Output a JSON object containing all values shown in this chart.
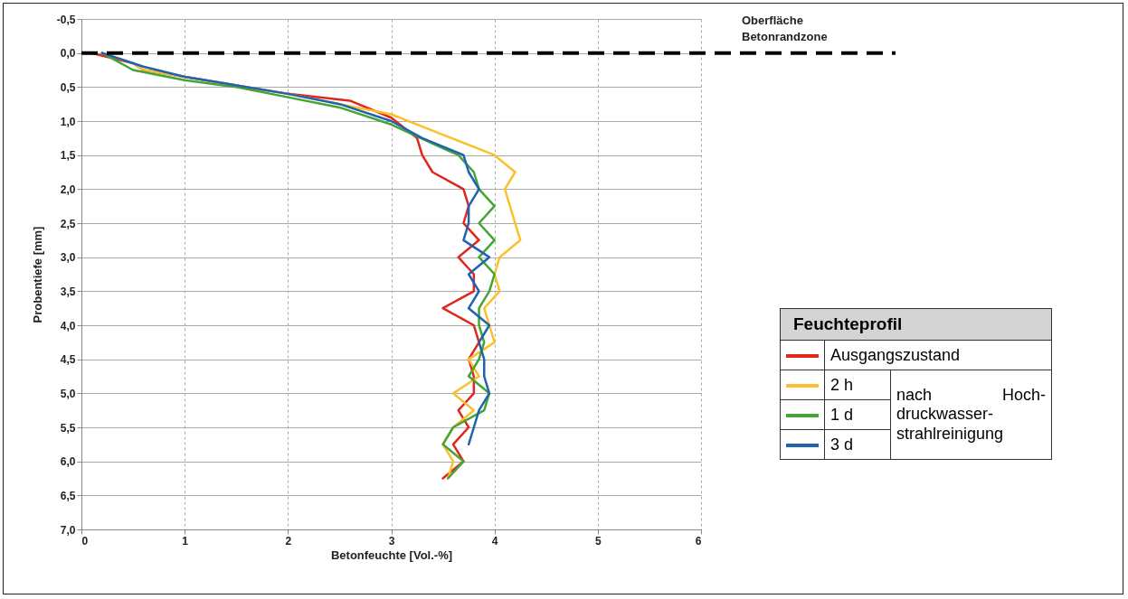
{
  "chart_data": {
    "type": "line",
    "xlabel": "Betonfeuchte [Vol.-%]",
    "ylabel": "Probentiefe  [mm]",
    "legend_title": "Feuchteprofil",
    "legend": "right",
    "grid": true,
    "xlim": [
      0,
      6
    ],
    "xticks": [
      0,
      1,
      2,
      3,
      4,
      5,
      6
    ],
    "ylim": [
      7,
      -0.5
    ],
    "yticks": [
      {
        "value": -0.5,
        "label": "-0,5"
      },
      {
        "value": 0,
        "label": "0,0"
      },
      {
        "value": 0.5,
        "label": "0,5"
      },
      {
        "value": 1,
        "label": "1,0"
      },
      {
        "value": 1.5,
        "label": "1,5"
      },
      {
        "value": 2,
        "label": "2,0"
      },
      {
        "value": 2.5,
        "label": "2,5"
      },
      {
        "value": 3,
        "label": "3,0"
      },
      {
        "value": 3.5,
        "label": "3,5"
      },
      {
        "value": 4,
        "label": "4,0"
      },
      {
        "value": 4.5,
        "label": "4,5"
      },
      {
        "value": 5,
        "label": "5,0"
      },
      {
        "value": 5.5,
        "label": "5,5"
      },
      {
        "value": 6,
        "label": "6,0"
      },
      {
        "value": 6.5,
        "label": "6,5"
      },
      {
        "value": 7,
        "label": "7,0"
      }
    ],
    "ref_lines": [
      {
        "axis": "y",
        "value": 0,
        "label": "Oberfläche\nBetonrandzone",
        "color": "#000000",
        "line_style": "dashed"
      }
    ],
    "annotations": [
      "nach Hoch-druckwasser-strahlreinigung"
    ],
    "series": [
      {
        "name": "Ausgangszustand",
        "color": "#e0261d",
        "x": [
          0.1,
          0.5,
          0.6,
          1.0,
          2.0,
          2.6,
          3.0,
          3.25,
          3.3,
          3.4,
          3.7,
          3.75,
          3.7,
          3.85,
          3.65,
          3.8,
          3.8,
          3.5,
          3.8,
          3.85,
          3.75,
          3.8,
          3.8,
          3.65,
          3.75,
          3.6,
          3.7,
          3.5
        ],
        "values": [
          0,
          0.15,
          0.25,
          0.35,
          0.6,
          0.7,
          0.95,
          1.25,
          1.5,
          1.75,
          2.0,
          2.25,
          2.5,
          2.75,
          3.0,
          3.25,
          3.5,
          3.75,
          4.0,
          4.25,
          4.5,
          4.75,
          5.0,
          5.25,
          5.5,
          5.75,
          6.0,
          6.25
        ]
      },
      {
        "name": "2 h",
        "color": "#fbc02d",
        "x": [
          0.2,
          0.5,
          0.6,
          1.0,
          2.0,
          2.5,
          3.0,
          3.5,
          4.0,
          4.2,
          4.1,
          4.15,
          4.2,
          4.25,
          4.05,
          4.0,
          4.05,
          3.9,
          3.95,
          4.0,
          3.75,
          3.85,
          3.6,
          3.8,
          3.6,
          3.5,
          3.6,
          3.55
        ],
        "values": [
          0,
          0.15,
          0.25,
          0.35,
          0.6,
          0.75,
          0.9,
          1.2,
          1.5,
          1.75,
          2.0,
          2.25,
          2.5,
          2.75,
          3.0,
          3.25,
          3.5,
          3.75,
          4.0,
          4.25,
          4.5,
          4.75,
          5.0,
          5.25,
          5.5,
          5.75,
          6.0,
          6.25
        ]
      },
      {
        "name": "1 d",
        "color": "#43a534",
        "x": [
          0.2,
          0.5,
          1.0,
          1.5,
          2.0,
          2.5,
          3.0,
          3.5,
          3.65,
          3.8,
          3.85,
          4.0,
          3.85,
          4.0,
          3.85,
          4.0,
          3.95,
          3.85,
          3.85,
          3.9,
          3.85,
          3.75,
          3.95,
          3.9,
          3.6,
          3.5,
          3.7,
          3.55
        ],
        "values": [
          0,
          0.25,
          0.4,
          0.5,
          0.65,
          0.8,
          1.05,
          1.4,
          1.5,
          1.75,
          2.0,
          2.25,
          2.5,
          2.75,
          3.0,
          3.25,
          3.5,
          3.75,
          4.0,
          4.25,
          4.5,
          4.75,
          5.0,
          5.25,
          5.5,
          5.75,
          6.0,
          6.25
        ]
      },
      {
        "name": "3 d",
        "color": "#1f62b0",
        "x": [
          0.2,
          0.6,
          1.0,
          2.0,
          2.5,
          3.0,
          3.3,
          3.7,
          3.75,
          3.85,
          3.75,
          3.75,
          3.7,
          3.95,
          3.75,
          3.85,
          3.75,
          3.95,
          3.85,
          3.9,
          3.9,
          3.95,
          3.85,
          3.8,
          3.75
        ],
        "values": [
          0,
          0.2,
          0.35,
          0.6,
          0.75,
          1.0,
          1.25,
          1.5,
          1.75,
          2.0,
          2.25,
          2.5,
          2.75,
          3.0,
          3.25,
          3.5,
          3.75,
          4.0,
          4.25,
          4.5,
          4.75,
          5.0,
          5.25,
          5.5,
          5.75
        ]
      }
    ]
  }
}
